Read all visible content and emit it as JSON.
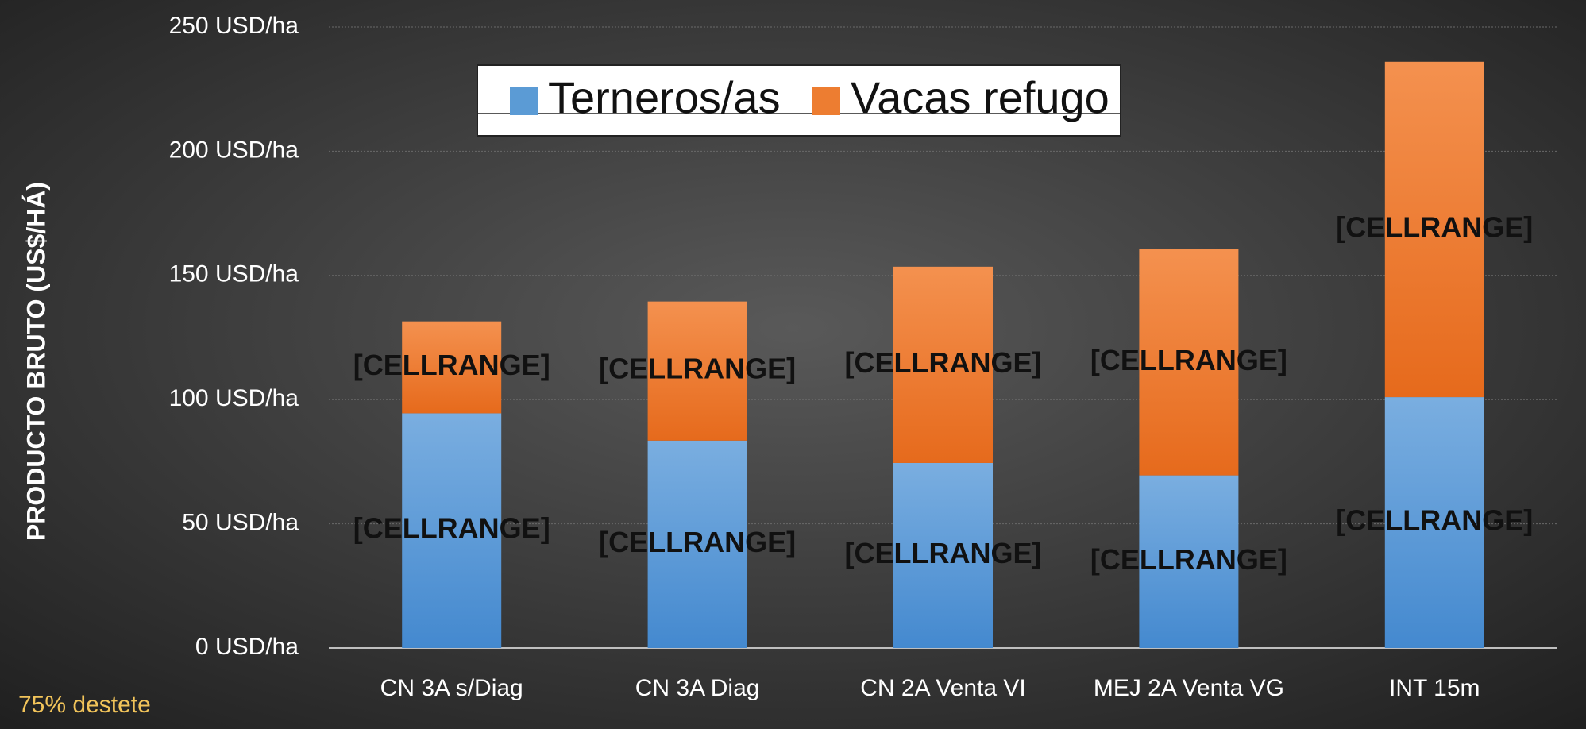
{
  "chart_data": {
    "type": "stacked_bar",
    "y_axis_label": "PRODUCTO BRUTO (US$/HÁ)",
    "annotation": "75% destete",
    "categories": [
      "CN 3A s/Diag",
      "CN 3A Diag",
      "CN 2A Venta VI",
      "MEJ 2A Venta VG",
      "INT 15m"
    ],
    "series": [
      {
        "name": "Terneros/as",
        "color": "#5b9bd5",
        "values": [
          94.5,
          83.5,
          74.5,
          69.5,
          101
        ],
        "data_labels": [
          "[CELLRANGE]",
          "[CELLRANGE]",
          "[CELLRANGE]",
          "[CELLRANGE]",
          "[CELLRANGE]"
        ]
      },
      {
        "name": "Vacas refugo",
        "color": "#ed7d31",
        "values": [
          37,
          56,
          79,
          91,
          135
        ],
        "data_labels": [
          "[CELLRANGE]",
          "[CELLRANGE]",
          "[CELLRANGE]",
          "[CELLRANGE]",
          "[CELLRANGE]"
        ]
      }
    ],
    "ylim": [
      0,
      250
    ],
    "yticks": [
      {
        "value": 0,
        "label": "0 USD/ha"
      },
      {
        "value": 50,
        "label": "50 USD/ha"
      },
      {
        "value": 100,
        "label": "100 USD/ha"
      },
      {
        "value": 150,
        "label": "150 USD/ha"
      },
      {
        "value": 200,
        "label": "200 USD/ha"
      },
      {
        "value": 250,
        "label": "250 USD/ha"
      }
    ],
    "grid": true,
    "legend": "top"
  }
}
